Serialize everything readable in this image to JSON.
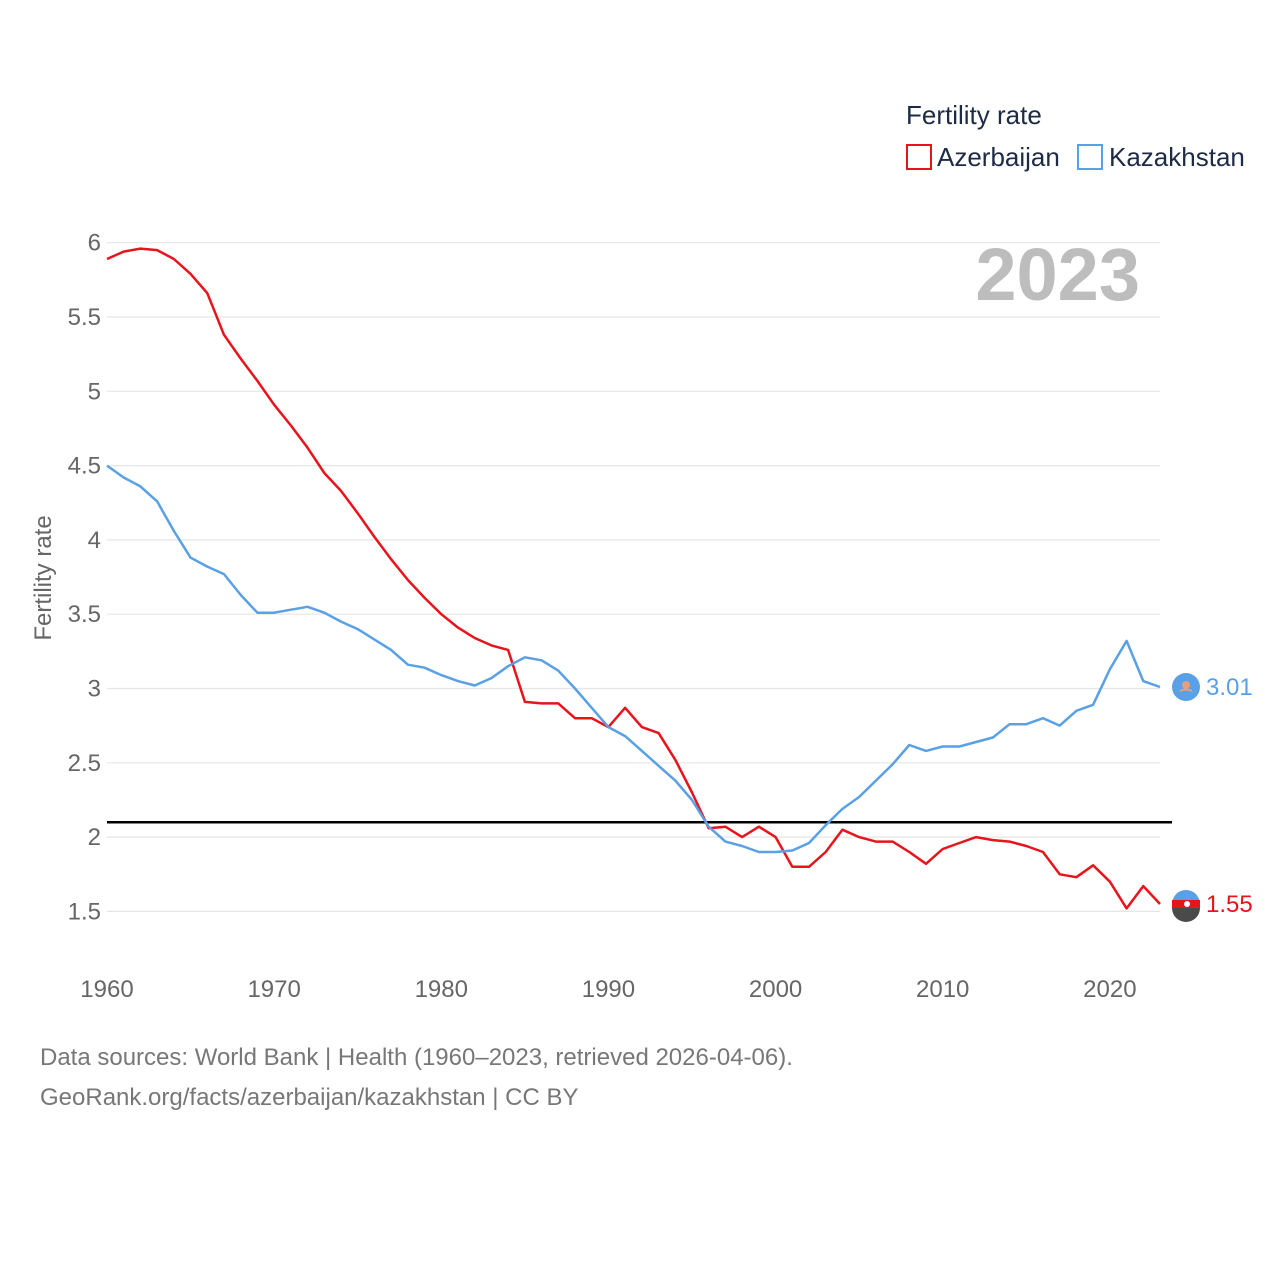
{
  "chart_data": {
    "type": "line",
    "title": "",
    "legend_title": "Fertility rate",
    "year_label": "2023",
    "ylabel": "Fertility rate",
    "xlabel": "",
    "xlim": [
      1960,
      2023
    ],
    "ylim": [
      1.2,
      6.1
    ],
    "yticks": [
      "1.5",
      "2",
      "2.5",
      "3",
      "3.5",
      "4",
      "4.5",
      "5",
      "5.5",
      "6"
    ],
    "xticks": [
      "1960",
      "1970",
      "1980",
      "1990",
      "2000",
      "2010",
      "2020"
    ],
    "reference_line": 2.1,
    "x": [
      1960,
      1961,
      1962,
      1963,
      1964,
      1965,
      1966,
      1967,
      1968,
      1969,
      1970,
      1971,
      1972,
      1973,
      1974,
      1975,
      1976,
      1977,
      1978,
      1979,
      1980,
      1981,
      1982,
      1983,
      1984,
      1985,
      1986,
      1987,
      1988,
      1989,
      1990,
      1991,
      1992,
      1993,
      1994,
      1995,
      1996,
      1997,
      1998,
      1999,
      2000,
      2001,
      2002,
      2003,
      2004,
      2005,
      2006,
      2007,
      2008,
      2009,
      2010,
      2011,
      2012,
      2013,
      2014,
      2015,
      2016,
      2017,
      2018,
      2019,
      2020,
      2021,
      2022,
      2023
    ],
    "series": [
      {
        "name": "Azerbaijan",
        "color": "#e8141c",
        "end_label": "1.55",
        "values": [
          5.89,
          5.94,
          5.96,
          5.95,
          5.89,
          5.79,
          5.66,
          5.38,
          5.22,
          5.07,
          4.91,
          4.77,
          4.62,
          4.45,
          4.33,
          4.18,
          4.02,
          3.87,
          3.73,
          3.61,
          3.5,
          3.41,
          3.34,
          3.29,
          3.26,
          2.91,
          2.9,
          2.9,
          2.8,
          2.8,
          2.74,
          2.87,
          2.74,
          2.7,
          2.52,
          2.3,
          2.06,
          2.07,
          2.0,
          2.07,
          2.0,
          1.8,
          1.8,
          1.9,
          2.05,
          2.0,
          1.97,
          1.97,
          1.9,
          1.82,
          1.92,
          1.96,
          2.0,
          1.98,
          1.97,
          1.94,
          1.9,
          1.75,
          1.73,
          1.81,
          1.7,
          1.52,
          1.67,
          1.55
        ]
      },
      {
        "name": "Kazakhstan",
        "color": "#5aa0e6",
        "end_label": "3.01",
        "values": [
          4.5,
          4.42,
          4.36,
          4.26,
          4.06,
          3.88,
          3.82,
          3.77,
          3.63,
          3.51,
          3.51,
          3.53,
          3.55,
          3.51,
          3.45,
          3.4,
          3.33,
          3.26,
          3.16,
          3.14,
          3.09,
          3.05,
          3.02,
          3.07,
          3.15,
          3.21,
          3.19,
          3.12,
          3.0,
          2.87,
          2.74,
          2.68,
          2.58,
          2.48,
          2.38,
          2.25,
          2.07,
          1.97,
          1.94,
          1.9,
          1.9,
          1.91,
          1.96,
          2.08,
          2.19,
          2.27,
          2.38,
          2.49,
          2.62,
          2.58,
          2.61,
          2.61,
          2.64,
          2.67,
          2.76,
          2.76,
          2.8,
          2.75,
          2.85,
          2.89,
          3.13,
          3.32,
          3.05,
          3.01
        ]
      }
    ]
  },
  "footer": {
    "line1": "Data sources: World Bank | Health (1960–2023, retrieved 2026-04-06).",
    "line2": "GeoRank.org/facts/azerbaijan/kazakhstan | CC BY"
  },
  "flag_icons": [
    "kazakhstan-flag-icon",
    "azerbaijan-flag-icon"
  ]
}
